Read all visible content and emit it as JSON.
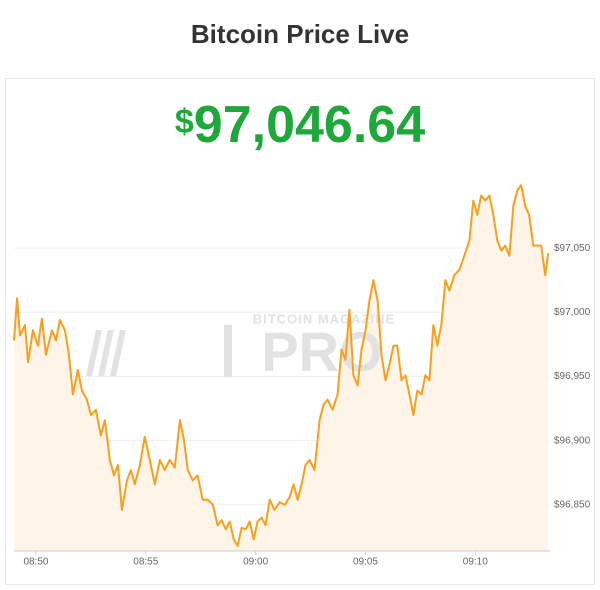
{
  "page": {
    "title": "Bitcoin Price Live",
    "price": {
      "currency": "$",
      "amount": "97,046.64"
    }
  },
  "watermark": {
    "line1": "BITCOIN MAGAZINE",
    "line2": "PRO"
  },
  "chart_data": {
    "type": "area",
    "color": "#f7a01c",
    "fill": "#fef4e8",
    "grid": true,
    "x": [
      529.0,
      529.14,
      529.27,
      529.5,
      529.64,
      529.86,
      530.09,
      530.27,
      530.45,
      530.73,
      530.91,
      531.09,
      531.32,
      531.5,
      531.68,
      531.91,
      532.09,
      532.32,
      532.5,
      532.73,
      532.95,
      533.14,
      533.36,
      533.55,
      533.73,
      533.91,
      534.14,
      534.32,
      534.5,
      534.73,
      534.95,
      535.18,
      535.41,
      535.64,
      535.86,
      536.09,
      536.32,
      536.55,
      536.73,
      536.91,
      537.14,
      537.36,
      537.59,
      537.82,
      538.05,
      538.27,
      538.45,
      538.64,
      538.82,
      539.0,
      539.18,
      539.36,
      539.55,
      539.73,
      539.91,
      540.09,
      540.27,
      540.45,
      540.64,
      540.86,
      541.09,
      541.32,
      541.55,
      541.73,
      541.91,
      542.09,
      542.27,
      542.45,
      542.68,
      542.91,
      543.09,
      543.27,
      543.5,
      543.73,
      543.91,
      544.09,
      544.27,
      544.45,
      544.64,
      544.82,
      545.0,
      545.18,
      545.36,
      545.55,
      545.73,
      545.91,
      546.09,
      546.27,
      546.45,
      546.64,
      546.82,
      547.0,
      547.18,
      547.36,
      547.55,
      547.73,
      547.91,
      548.09,
      548.27,
      548.45,
      548.64,
      548.82,
      549.05,
      549.27,
      549.5,
      549.73,
      549.91,
      550.09,
      550.27,
      550.45,
      550.64,
      550.82,
      551.0,
      551.18,
      551.36,
      551.55,
      551.73,
      551.91,
      552.09,
      552.27,
      552.45,
      552.64,
      552.82,
      553.0,
      553.18,
      553.32
    ],
    "values": [
      96978,
      97011,
      96982,
      96990,
      96961,
      96986,
      96974,
      96995,
      96967,
      96986,
      96978,
      96994,
      96986,
      96967,
      96936,
      96955,
      96939,
      96932,
      96920,
      96924,
      96904,
      96916,
      96885,
      96873,
      96881,
      96846,
      96869,
      96877,
      96866,
      96881,
      96903,
      96885,
      96866,
      96885,
      96877,
      96885,
      96879,
      96916,
      96901,
      96877,
      96869,
      96873,
      96854,
      96854,
      96850,
      96834,
      96838,
      96831,
      96837,
      96823,
      96818,
      96832,
      96831,
      96837,
      96823,
      96837,
      96840,
      96834,
      96854,
      96846,
      96852,
      96850,
      96856,
      96866,
      96854,
      96866,
      96881,
      96885,
      96877,
      96916,
      96928,
      96932,
      96924,
      96936,
      96971,
      96963,
      97002,
      96951,
      96943,
      96971,
      96986,
      97009,
      97025,
      97009,
      96967,
      96947,
      96959,
      96974,
      96974,
      96947,
      96951,
      96936,
      96920,
      96939,
      96936,
      96951,
      96947,
      96990,
      96974,
      96990,
      97025,
      97017,
      97029,
      97033,
      97044,
      97056,
      97087,
      97076,
      97091,
      97087,
      97091,
      97076,
      97056,
      97048,
      97052,
      97044,
      97083,
      97095,
      97099,
      97083,
      97076,
      97052,
      97052,
      97052,
      97029,
      97046
    ],
    "xlim": [
      529,
      553.4
    ],
    "xticks": [
      {
        "value": 530,
        "label": "08:50"
      },
      {
        "value": 535,
        "label": "08:55"
      },
      {
        "value": 540,
        "label": "09:00"
      },
      {
        "value": 545,
        "label": "09:05"
      },
      {
        "value": 550,
        "label": "09:10"
      }
    ],
    "ylim": [
      96814,
      97181
    ],
    "yticks": [
      {
        "value": 96850,
        "label": "$96,850"
      },
      {
        "value": 96900,
        "label": "$96,900"
      },
      {
        "value": 96950,
        "label": "$96,950"
      },
      {
        "value": 97000,
        "label": "$97,000"
      },
      {
        "value": 97050,
        "label": "$97,050"
      }
    ]
  }
}
